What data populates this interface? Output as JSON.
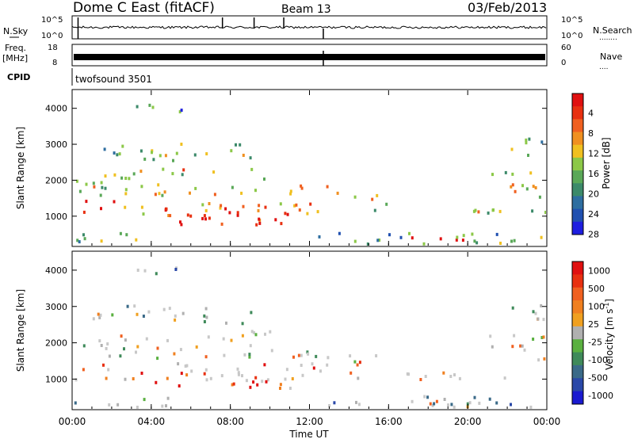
{
  "header": {
    "station": "Dome C East (fitACF)",
    "beam": "Beam 13",
    "date": "03/Feb/2013"
  },
  "left_labels": {
    "nsky": "N.Sky",
    "freq": "Freq.",
    "freq_unit": "[MHz]",
    "cpid": "CPID"
  },
  "right_labels": {
    "nsearch": "N.Search",
    "nsearch_dots": "........",
    "nave": "Nave",
    "nave_dots": "...."
  },
  "cpid_text": "twofsound 3501",
  "colors": {
    "power_scale": [
      "#1e1ee0",
      "#2050b0",
      "#2e6ea0",
      "#3c8a6a",
      "#5aa858",
      "#8cc848",
      "#f0c020",
      "#f09020",
      "#f06020",
      "#e83010",
      "#e01010"
    ],
    "velocity_scale": [
      "#1a1ad0",
      "#2a48a8",
      "#3a6a88",
      "#3f8a5a",
      "#5ab040",
      "#b0b0b0",
      "#f0a020",
      "#f08020",
      "#f06020",
      "#e83010",
      "#e01010"
    ],
    "background_gray": "#c8c8c8"
  },
  "chart_data": [
    {
      "type": "line",
      "panel": "noise",
      "ylabel_left": "N.Sky",
      "ylabel_right": "N.Search",
      "left_ticks": [
        "10^5",
        "10^0"
      ],
      "right_ticks": [
        "10^5",
        "10^0"
      ]
    },
    {
      "type": "line",
      "panel": "frequency",
      "ylabel_left": "Freq. [MHz]",
      "ylabel_right": "Nave",
      "left_ticks": [
        "18",
        "8"
      ],
      "right_ticks": [
        "60",
        "0"
      ]
    },
    {
      "type": "heatmap",
      "panel": "power",
      "x": [
        "00:00",
        "04:00",
        "08:00",
        "12:00",
        "16:00",
        "20:00",
        "00:00"
      ],
      "xlim": [
        0,
        24
      ],
      "ylabel": "Slant Range [km]",
      "y_ticks": [
        "1000",
        "2000",
        "3000",
        "4000"
      ],
      "ylim": [
        180,
        4500
      ],
      "colorbar_label": "Power [dB]",
      "colorbar_ticks": [
        "4",
        "8",
        "12",
        "16",
        "20",
        "24",
        "28"
      ]
    },
    {
      "type": "heatmap",
      "panel": "velocity",
      "x": [
        "00:00",
        "04:00",
        "08:00",
        "12:00",
        "16:00",
        "20:00",
        "00:00"
      ],
      "xlim": [
        0,
        24
      ],
      "xlabel": "Time UT",
      "ylabel": "Slant Range [km]",
      "y_ticks": [
        "1000",
        "2000",
        "3000",
        "4000"
      ],
      "ylim": [
        180,
        4500
      ],
      "colorbar_label": "Velocity [m s",
      "colorbar_sup": "-1",
      "colorbar_label_close": "]",
      "colorbar_ticks": [
        "1000",
        "500",
        "100",
        "25",
        "-25",
        "-100",
        "-500",
        "-1000"
      ]
    }
  ]
}
